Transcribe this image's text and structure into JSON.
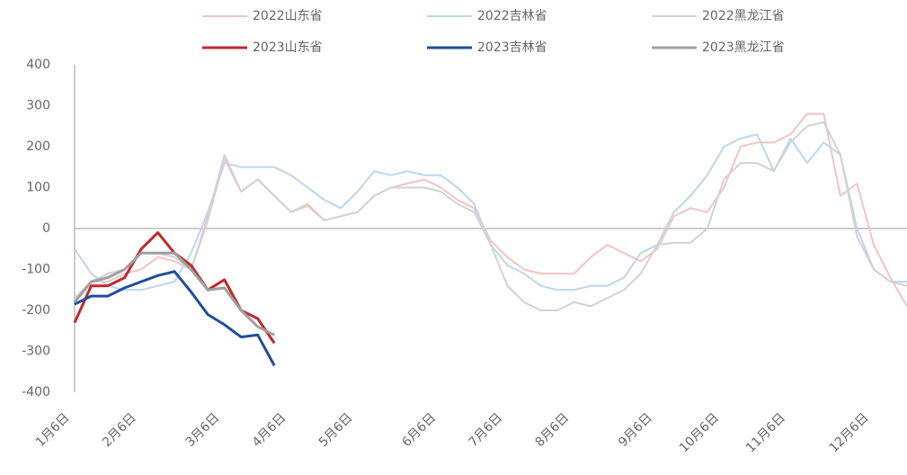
{
  "chart_data": {
    "type": "line",
    "categories": [
      "1月6日",
      null,
      null,
      null,
      "2月6日",
      null,
      null,
      null,
      null,
      "3月6日",
      null,
      null,
      null,
      "4月6日",
      null,
      null,
      null,
      "5月6日",
      null,
      null,
      null,
      null,
      "6月6日",
      null,
      null,
      null,
      "7月6日",
      null,
      null,
      null,
      "8月6日",
      null,
      null,
      null,
      null,
      "9月6日",
      null,
      null,
      null,
      "10月6日",
      null,
      null,
      null,
      "11月6日",
      null,
      null,
      null,
      null,
      "12月6日",
      null,
      null
    ],
    "series": [
      {
        "name": "2022山东省",
        "color": "#f2c4c4",
        "values": [
          -170,
          -130,
          -130,
          -110,
          -100,
          -70,
          -80,
          -100,
          20,
          170,
          90,
          120,
          80,
          40,
          55,
          20,
          30,
          40,
          80,
          100,
          110,
          120,
          100,
          70,
          50,
          -30,
          -70,
          -100,
          -110,
          -110,
          -110,
          -70,
          -40,
          -60,
          -80,
          -50,
          30,
          50,
          40,
          100,
          200,
          210,
          210,
          230,
          280,
          280,
          80,
          110,
          -40,
          -120,
          -190
        ]
      },
      {
        "name": "2022吉林省",
        "color": "#bcd6ee",
        "values": [
          -50,
          -110,
          -140,
          -150,
          -150,
          -140,
          -130,
          -60,
          40,
          160,
          150,
          150,
          150,
          130,
          100,
          70,
          50,
          90,
          140,
          130,
          140,
          130,
          130,
          100,
          60,
          -40,
          -90,
          -110,
          -140,
          -150,
          -150,
          -140,
          -140,
          -120,
          -60,
          -40,
          40,
          80,
          130,
          200,
          220,
          230,
          140,
          220,
          160,
          210,
          180,
          0,
          -100,
          -130,
          -130
        ]
      },
      {
        "name": "2022黑龙江省",
        "color": "#d2d2d2",
        "values": [
          -170,
          -130,
          -110,
          -100,
          -60,
          -60,
          -70,
          -100,
          30,
          180,
          90,
          120,
          80,
          40,
          60,
          20,
          30,
          40,
          80,
          100,
          100,
          100,
          90,
          60,
          40,
          -40,
          -140,
          -180,
          -200,
          -200,
          -180,
          -190,
          -170,
          -150,
          -110,
          -40,
          -35,
          -35,
          0,
          120,
          160,
          160,
          140,
          210,
          250,
          260,
          180,
          -20,
          -100,
          -130,
          -140
        ]
      },
      {
        "name": "2023山东省",
        "color": "#c0282d",
        "values": [
          -230,
          -140,
          -140,
          -120,
          -50,
          -10,
          -60,
          -90,
          -150,
          -125,
          -200,
          -220,
          -280,
          null,
          null,
          null,
          null,
          null,
          null,
          null,
          null,
          null,
          null,
          null,
          null,
          null,
          null,
          null,
          null,
          null,
          null,
          null,
          null,
          null,
          null,
          null,
          null,
          null,
          null,
          null,
          null,
          null,
          null,
          null,
          null,
          null,
          null,
          null,
          null,
          null,
          null
        ]
      },
      {
        "name": "2023吉林省",
        "color": "#1f4e9a",
        "values": [
          -185,
          -165,
          -165,
          -145,
          -130,
          -115,
          -105,
          -155,
          -210,
          -235,
          -265,
          -260,
          -335,
          null,
          null,
          null,
          null,
          null,
          null,
          null,
          null,
          null,
          null,
          null,
          null,
          null,
          null,
          null,
          null,
          null,
          null,
          null,
          null,
          null,
          null,
          null,
          null,
          null,
          null,
          null,
          null,
          null,
          null,
          null,
          null,
          null,
          null,
          null,
          null,
          null,
          null
        ]
      },
      {
        "name": "2023黑龙江省",
        "color": "#a0a0a0",
        "values": [
          -180,
          -130,
          -120,
          -100,
          -60,
          -60,
          -60,
          -100,
          -150,
          -145,
          -200,
          -240,
          -260,
          null,
          null,
          null,
          null,
          null,
          null,
          null,
          null,
          null,
          null,
          null,
          null,
          null,
          null,
          null,
          null,
          null,
          null,
          null,
          null,
          null,
          null,
          null,
          null,
          null,
          null,
          null,
          null,
          null,
          null,
          null,
          null,
          null,
          null,
          null,
          null,
          null,
          null
        ]
      }
    ],
    "ylim": [
      -400,
      400
    ],
    "yticks": [
      -400,
      -300,
      -200,
      -100,
      0,
      100,
      200,
      300,
      400
    ]
  }
}
